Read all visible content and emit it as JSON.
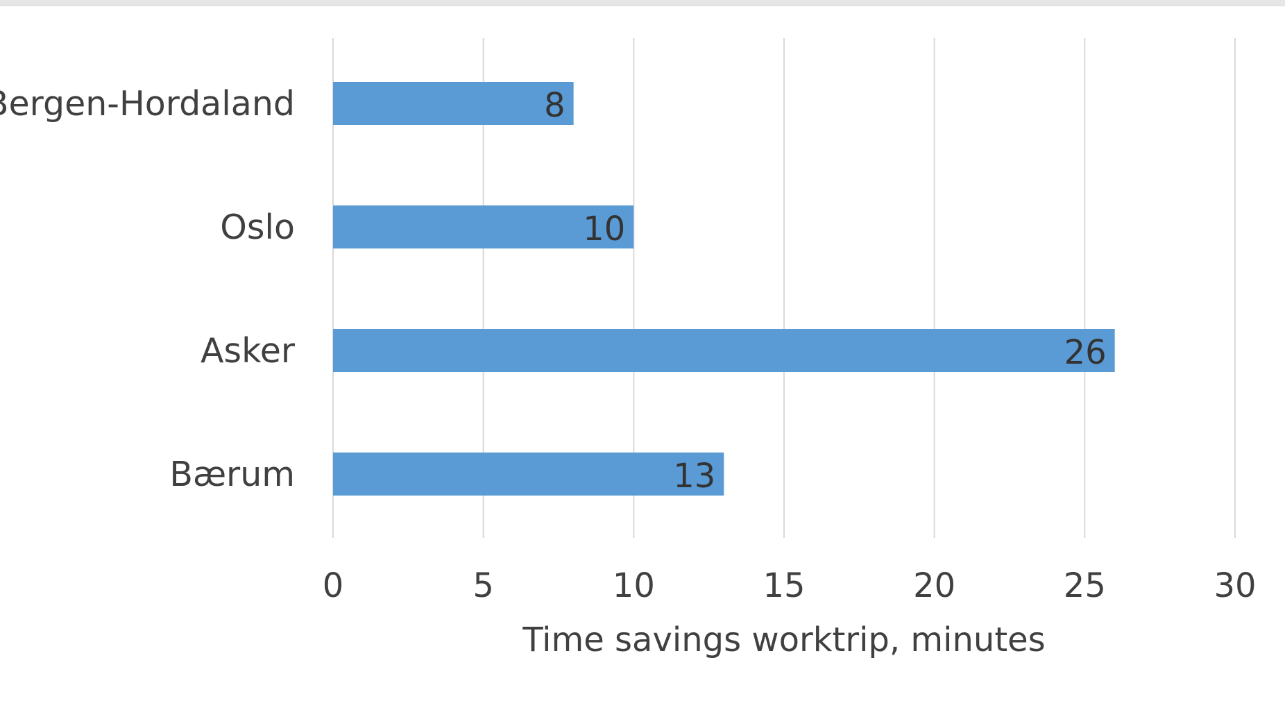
{
  "chart_data": {
    "type": "bar",
    "orientation": "horizontal",
    "categories": [
      "Bergen-Hordaland",
      "Oslo",
      "Asker",
      "Bærum"
    ],
    "values": [
      8,
      10,
      26,
      13
    ],
    "data_labels": [
      "8",
      "10",
      "26",
      "13"
    ],
    "xlabel": "Time savings worktrip, minutes",
    "xlim": [
      0,
      30
    ],
    "xticks": [
      "0",
      "5",
      "10",
      "15",
      "20",
      "25",
      "30"
    ],
    "grid": "vertical",
    "legend": "none",
    "bar_color": "#5b9bd5"
  }
}
